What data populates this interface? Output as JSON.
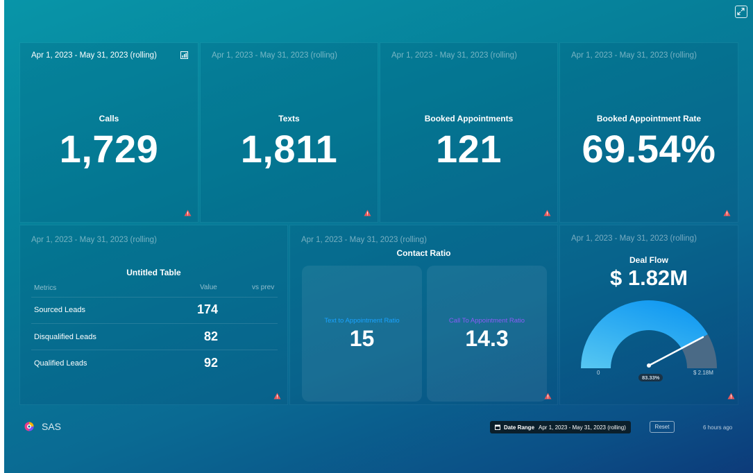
{
  "header": {
    "expand_icon": "expand-icon"
  },
  "date_label": "Apr 1, 2023 - May 31, 2023 (rolling)",
  "kpis": [
    {
      "title": "Calls",
      "value": "1,729"
    },
    {
      "title": "Texts",
      "value": "1,811"
    },
    {
      "title": "Booked Appointments",
      "value": "121"
    },
    {
      "title": "Booked Appointment Rate",
      "value": "69.54%"
    }
  ],
  "table": {
    "title": "Untitled Table",
    "columns": [
      "Metrics",
      "Value",
      "vs prev"
    ],
    "rows": [
      {
        "metric": "Sourced Leads",
        "value": "174"
      },
      {
        "metric": "Disqualified Leads",
        "value": "82"
      },
      {
        "metric": "Qualified Leads",
        "value": "92"
      }
    ]
  },
  "contact_ratio": {
    "title": "Contact Ratio",
    "items": [
      {
        "label": "Text to Appointment Ratio",
        "value": "15",
        "color": "#1aa3ff"
      },
      {
        "label": "Call To Appointment Ratio",
        "value": "14.3",
        "color": "#8a5cf6"
      }
    ]
  },
  "deal_flow": {
    "title": "Deal Flow",
    "value": "$ 1.82M",
    "min_label": "0",
    "max_label": "$ 2.18M",
    "percent_label": "83.33%",
    "fraction": 0.8333,
    "gauge_color": "#1a9cf0",
    "remainder_color": "#3a6a8a"
  },
  "footer": {
    "brand": "SAS",
    "date_range_label": "Date Range",
    "date_range_value": "Apr 1, 2023 - May 31, 2023 (rolling)",
    "reset_label": "Reset",
    "updated": "6 hours ago"
  },
  "colors": {
    "warning": "#e8595b",
    "accent": "#0895a8"
  }
}
